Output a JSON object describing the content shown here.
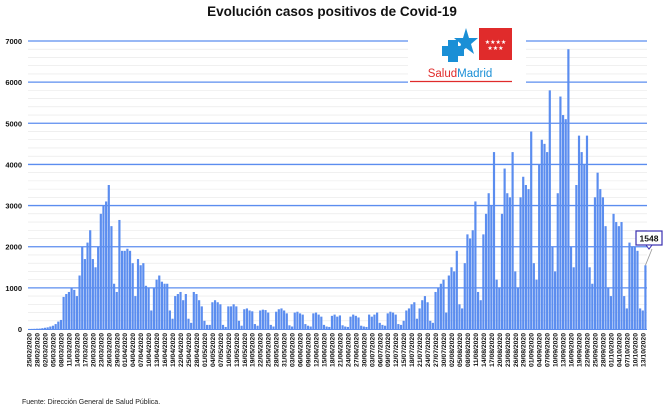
{
  "chart_data": {
    "type": "bar",
    "title": "Evolución casos positivos de Covid-19",
    "xlabel": "",
    "ylabel": "",
    "ylim": [
      0,
      7000
    ],
    "yticks": [
      0,
      1000,
      2000,
      3000,
      4000,
      5000,
      6000,
      7000
    ],
    "grid": true,
    "bar_color": "#5b8def",
    "gridline_color": "#5b8def",
    "xtick_labels": [
      "25/02/2020",
      "28/02/2020",
      "02/03/2020",
      "05/03/2020",
      "08/03/2020",
      "11/03/2020",
      "14/03/2020",
      "17/03/2020",
      "20/03/2020",
      "23/03/2020",
      "26/03/2020",
      "29/03/2020",
      "01/04/2020",
      "04/04/2020",
      "07/04/2020",
      "10/04/2020",
      "13/04/2020",
      "16/04/2020",
      "19/04/2020",
      "22/04/2020",
      "25/04/2020",
      "28/04/2020",
      "01/05/2020",
      "04/05/2020",
      "07/05/2020",
      "10/05/2020",
      "13/05/2020",
      "16/05/2020",
      "19/05/2020",
      "22/05/2020",
      "25/05/2020",
      "28/05/2020",
      "31/05/2020",
      "03/06/2020",
      "06/06/2020",
      "09/06/2020",
      "12/06/2020",
      "15/06/2020",
      "18/06/2020",
      "21/06/2020",
      "24/06/2020",
      "27/06/2020",
      "30/06/2020",
      "03/07/2020",
      "06/07/2020",
      "09/07/2020",
      "12/07/2020",
      "15/07/2020",
      "18/07/2020",
      "21/07/2020",
      "24/07/2020",
      "27/07/2020",
      "30/07/2020",
      "02/08/2020",
      "05/08/2020",
      "08/08/2020",
      "11/08/2020",
      "14/08/2020",
      "17/08/2020",
      "20/08/2020",
      "23/08/2020",
      "26/08/2020",
      "29/08/2020",
      "01/09/2020",
      "04/09/2020",
      "07/09/2020",
      "10/09/2020",
      "13/09/2020",
      "16/09/2020",
      "19/09/2020",
      "22/09/2020",
      "25/09/2020",
      "28/09/2020",
      "01/10/2020",
      "04/10/2020",
      "07/10/2020",
      "10/10/2020",
      "13/10/2020"
    ],
    "values": [
      2,
      3,
      5,
      8,
      10,
      20,
      30,
      40,
      60,
      80,
      120,
      180,
      220,
      780,
      850,
      900,
      1000,
      950,
      800,
      1300,
      2000,
      1700,
      2100,
      2400,
      1700,
      1500,
      2000,
      2800,
      3000,
      3100,
      3500,
      2500,
      1100,
      900,
      2650,
      1900,
      1900,
      1950,
      1900,
      1600,
      800,
      1700,
      1550,
      1600,
      1050,
      1000,
      450,
      1000,
      1200,
      1300,
      1150,
      1100,
      1100,
      450,
      250,
      800,
      850,
      900,
      700,
      850,
      250,
      150,
      900,
      850,
      700,
      550,
      200,
      100,
      100,
      650,
      700,
      650,
      600,
      100,
      50,
      550,
      550,
      600,
      550,
      200,
      80,
      480,
      500,
      450,
      430,
      120,
      80,
      450,
      470,
      460,
      400,
      100,
      60,
      420,
      480,
      500,
      450,
      380,
      90,
      60,
      400,
      420,
      380,
      350,
      120,
      80,
      60,
      380,
      400,
      350,
      300,
      100,
      60,
      50,
      320,
      350,
      300,
      330,
      90,
      60,
      50,
      300,
      350,
      320,
      280,
      80,
      60,
      50,
      350,
      300,
      350,
      400,
      150,
      100,
      80,
      380,
      420,
      400,
      350,
      120,
      100,
      200,
      450,
      500,
      600,
      650,
      250,
      500,
      700,
      800,
      650,
      200,
      150,
      900,
      1000,
      1100,
      1200,
      400,
      1300,
      1500,
      1400,
      1900,
      600,
      500,
      1600,
      2300,
      2200,
      2400,
      3100,
      900,
      700,
      2300,
      2800,
      3300,
      3000,
      4300,
      1200,
      1000,
      2800,
      3900,
      3300,
      3200,
      4300,
      1400,
      1000,
      3200,
      3700,
      3500,
      3400,
      4800,
      1600,
      1200,
      4000,
      4600,
      4500,
      4300,
      5800,
      2000,
      1400,
      3300,
      5650,
      5200,
      5100,
      6800,
      2000,
      1500,
      3500,
      4700,
      4300,
      4000,
      4700,
      1500,
      1100,
      3200,
      3800,
      3400,
      3200,
      2500,
      1000,
      800,
      2800,
      2600,
      2500,
      2600,
      800,
      500,
      2100,
      2000,
      2000,
      1900,
      500,
      450,
      1548
    ],
    "annotation": {
      "label": "1548",
      "color": "#3a2fb0"
    }
  },
  "logo": {
    "text_salud": "Salud",
    "text_madrid": "Madrid",
    "blue": "#1a8fd6",
    "red": "#e02b2b"
  },
  "footer": {
    "source": "Fuente: Dirección General de Salud Pública."
  }
}
